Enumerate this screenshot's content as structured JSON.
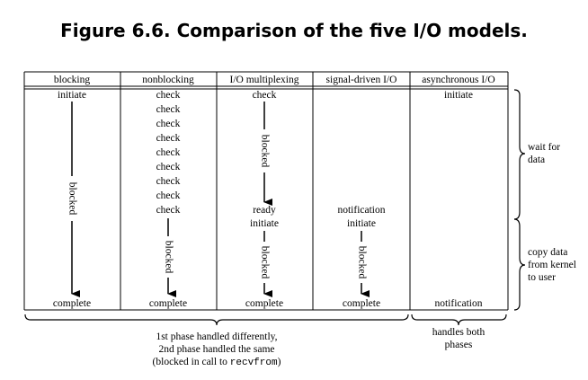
{
  "title": "Figure 6.6. Comparison of the five I/O models.",
  "columns": [
    "blocking",
    "nonblocking",
    "I/O multiplexing",
    "signal-driven I/O",
    "asynchronous I/O"
  ],
  "blocking": {
    "initiate": "initiate",
    "blocked": "blocked",
    "complete": "complete"
  },
  "nonblocking": {
    "check": "check",
    "check_count": 9,
    "blocked": "blocked",
    "complete": "complete"
  },
  "multiplexing": {
    "check": "check",
    "blocked1": "blocked",
    "ready": "ready",
    "initiate": "initiate",
    "blocked2": "blocked",
    "complete": "complete"
  },
  "signal": {
    "notification": "notification",
    "initiate": "initiate",
    "blocked": "blocked",
    "complete": "complete"
  },
  "async": {
    "initiate": "initiate",
    "notification": "notification"
  },
  "phases": {
    "wait_line1": "wait for",
    "wait_line2": "data",
    "copy_line1": "copy data",
    "copy_line2": "from kernel",
    "copy_line3": "to user"
  },
  "bottom": {
    "left_line1": "1st phase handled differently,",
    "left_line2": "2nd phase handled the same",
    "left_line3_prefix": "(blocked in call to ",
    "left_line3_code": "recvfrom",
    "left_line3_suffix": ")",
    "right_line1": "handles both",
    "right_line2": "phases"
  }
}
